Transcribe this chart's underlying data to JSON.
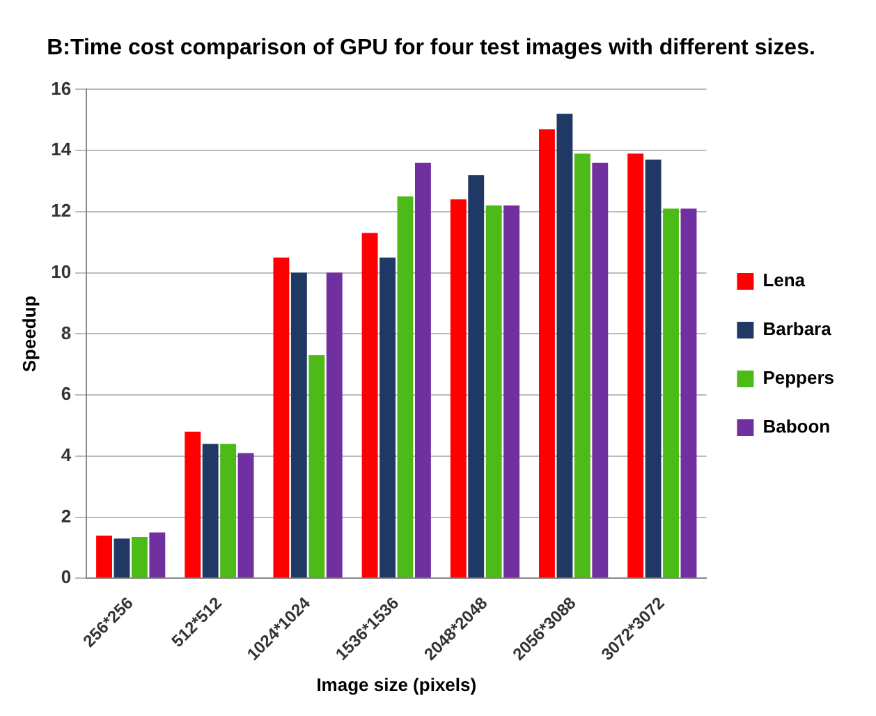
{
  "chart_data": {
    "type": "bar",
    "title": "B:Time cost comparison of GPU for four test images with different sizes.",
    "xlabel": "Image size (pixels)",
    "ylabel": "Speedup",
    "categories": [
      "256*256",
      "512*512",
      "1024*1024",
      "1536*1536",
      "2048*2048",
      "2056*3088",
      "3072*3072"
    ],
    "series": [
      {
        "name": "Lena",
        "color": "#ff0000",
        "values": [
          1.4,
          4.8,
          10.5,
          11.3,
          12.4,
          14.7,
          13.9
        ]
      },
      {
        "name": "Barbara",
        "color": "#1f3864",
        "values": [
          1.3,
          4.4,
          10.0,
          10.5,
          13.2,
          15.2,
          13.7
        ]
      },
      {
        "name": "Peppers",
        "color": "#4cbb17",
        "values": [
          1.35,
          4.4,
          7.3,
          12.5,
          12.2,
          13.9,
          12.1
        ]
      },
      {
        "name": "Baboon",
        "color": "#7030a0",
        "values": [
          1.5,
          4.1,
          10.0,
          13.6,
          12.2,
          13.6,
          12.1
        ]
      }
    ],
    "ylim": [
      0,
      16
    ],
    "yticks": [
      0,
      2,
      4,
      6,
      8,
      10,
      12,
      14,
      16
    ],
    "grid": "y",
    "legend": "right"
  }
}
